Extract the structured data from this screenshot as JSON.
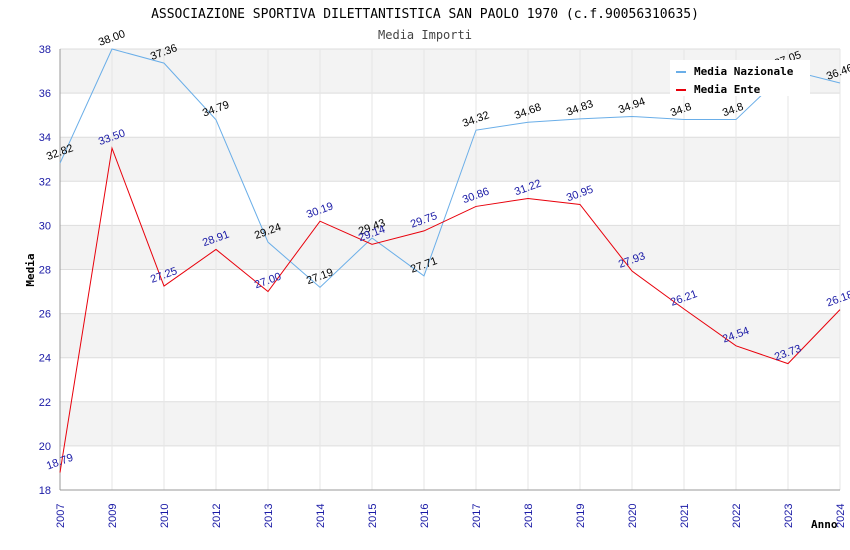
{
  "chart_data": {
    "type": "line",
    "title": "ASSOCIAZIONE SPORTIVA DILETTANTISTICA SAN PAOLO 1970 (c.f.90056310635)",
    "subtitle": "Media Importi",
    "xlabel": "Anno",
    "ylabel": "Media",
    "categories": [
      "2007",
      "2009",
      "2010",
      "2012",
      "2013",
      "2014",
      "2015",
      "2016",
      "2017",
      "2018",
      "2019",
      "2020",
      "2021",
      "2022",
      "2023",
      "2024"
    ],
    "ylim": [
      18,
      38
    ],
    "yticks": [
      18,
      20,
      22,
      24,
      26,
      28,
      30,
      32,
      34,
      36,
      38
    ],
    "grid": true,
    "legend_position": "top-right",
    "series": [
      {
        "name": "Media Nazionale",
        "color": "#6aaee8",
        "label_color": "#000000",
        "values": [
          32.82,
          38.0,
          37.36,
          34.79,
          29.24,
          27.19,
          29.43,
          27.71,
          34.32,
          34.68,
          34.83,
          34.94,
          34.8,
          34.8,
          37.05,
          36.46
        ],
        "labels": [
          "32.82",
          "38.00",
          "37.36",
          "34.79",
          "29.24",
          "27.19",
          "29.43",
          "27.71",
          "34.32",
          "34.68",
          "34.83",
          "34.94",
          "34.8",
          "34.8",
          "37.05",
          "36.46"
        ]
      },
      {
        "name": "Media Ente",
        "color": "#e8000b",
        "label_color": "#1a1aa6",
        "values": [
          18.79,
          33.5,
          27.25,
          28.91,
          27.0,
          30.19,
          29.14,
          29.75,
          30.86,
          31.22,
          30.95,
          27.93,
          26.21,
          24.54,
          23.73,
          26.18
        ],
        "labels": [
          "18.79",
          "33.50",
          "27.25",
          "28.91",
          "27.00",
          "30.19",
          "29.14",
          "29.75",
          "30.86",
          "31.22",
          "30.95",
          "27.93",
          "26.21",
          "24.54",
          "23.73",
          "26.18"
        ]
      }
    ]
  }
}
